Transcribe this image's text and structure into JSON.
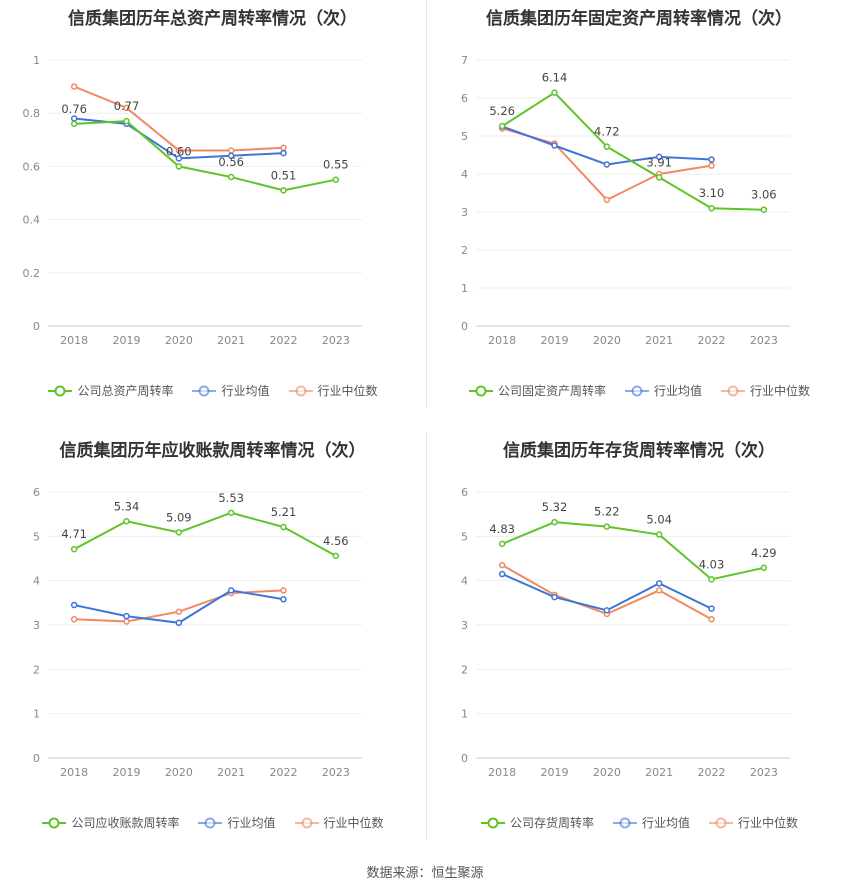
{
  "source_text": "数据来源：恒生聚源",
  "colors": {
    "company": "#5ec428",
    "avg": "#3f74d8",
    "median": "#f08a62"
  },
  "chart_data": [
    {
      "type": "line",
      "title": "信质集团历年总资产周转率情况（次）",
      "categories": [
        "2018",
        "2019",
        "2020",
        "2021",
        "2022",
        "2023"
      ],
      "ylim": [
        0,
        1
      ],
      "yticks": [
        "0",
        "0.2",
        "0.4",
        "0.6",
        "0.8",
        "1"
      ],
      "grid": true,
      "legend_position": "bottom",
      "series": [
        {
          "name": "公司总资产周转率",
          "values": [
            0.76,
            0.77,
            0.6,
            0.56,
            0.51,
            0.55
          ],
          "labels": [
            "0.76",
            "0.77",
            "0.60",
            "0.56",
            "0.51",
            "0.55"
          ]
        },
        {
          "name": "行业均值",
          "values": [
            0.78,
            0.76,
            0.63,
            0.64,
            0.65,
            null
          ]
        },
        {
          "name": "行业中位数",
          "values": [
            0.9,
            0.82,
            0.66,
            0.66,
            0.67,
            null
          ]
        }
      ]
    },
    {
      "type": "line",
      "title": "信质集团历年固定资产周转率情况（次）",
      "categories": [
        "2018",
        "2019",
        "2020",
        "2021",
        "2022",
        "2023"
      ],
      "ylim": [
        0,
        7
      ],
      "yticks": [
        "0",
        "1",
        "2",
        "3",
        "4",
        "5",
        "6",
        "7"
      ],
      "grid": true,
      "legend_position": "bottom",
      "series": [
        {
          "name": "公司固定资产周转率",
          "values": [
            5.26,
            6.14,
            4.72,
            3.91,
            3.1,
            3.06
          ],
          "labels": [
            "5.26",
            "6.14",
            "4.72",
            "3.91",
            "3.10",
            "3.06"
          ]
        },
        {
          "name": "行业均值",
          "values": [
            5.25,
            4.75,
            4.25,
            4.45,
            4.38,
            null
          ]
        },
        {
          "name": "行业中位数",
          "values": [
            5.2,
            4.8,
            3.32,
            4.0,
            4.22,
            null
          ]
        }
      ]
    },
    {
      "type": "line",
      "title": "信质集团历年应收账款周转率情况（次）",
      "categories": [
        "2018",
        "2019",
        "2020",
        "2021",
        "2022",
        "2023"
      ],
      "ylim": [
        0,
        6
      ],
      "yticks": [
        "0",
        "1",
        "2",
        "3",
        "4",
        "5",
        "6"
      ],
      "grid": true,
      "legend_position": "bottom",
      "series": [
        {
          "name": "公司应收账款周转率",
          "values": [
            4.71,
            5.34,
            5.09,
            5.53,
            5.21,
            4.56
          ],
          "labels": [
            "4.71",
            "5.34",
            "5.09",
            "5.53",
            "5.21",
            "4.56"
          ]
        },
        {
          "name": "行业均值",
          "values": [
            3.45,
            3.2,
            3.05,
            3.78,
            3.58,
            null
          ]
        },
        {
          "name": "行业中位数",
          "values": [
            3.13,
            3.08,
            3.3,
            3.72,
            3.78,
            null
          ]
        }
      ]
    },
    {
      "type": "line",
      "title": "信质集团历年存货周转率情况（次）",
      "categories": [
        "2018",
        "2019",
        "2020",
        "2021",
        "2022",
        "2023"
      ],
      "ylim": [
        0,
        6
      ],
      "yticks": [
        "0",
        "1",
        "2",
        "3",
        "4",
        "5",
        "6"
      ],
      "grid": true,
      "legend_position": "bottom",
      "series": [
        {
          "name": "公司存货周转率",
          "values": [
            4.83,
            5.32,
            5.22,
            5.04,
            4.03,
            4.29
          ],
          "labels": [
            "4.83",
            "5.32",
            "5.22",
            "5.04",
            "4.03",
            "4.29"
          ]
        },
        {
          "name": "行业均值",
          "values": [
            4.15,
            3.63,
            3.33,
            3.94,
            3.37,
            null
          ]
        },
        {
          "name": "行业中位数",
          "values": [
            4.35,
            3.68,
            3.25,
            3.78,
            3.13,
            null
          ]
        }
      ]
    }
  ]
}
